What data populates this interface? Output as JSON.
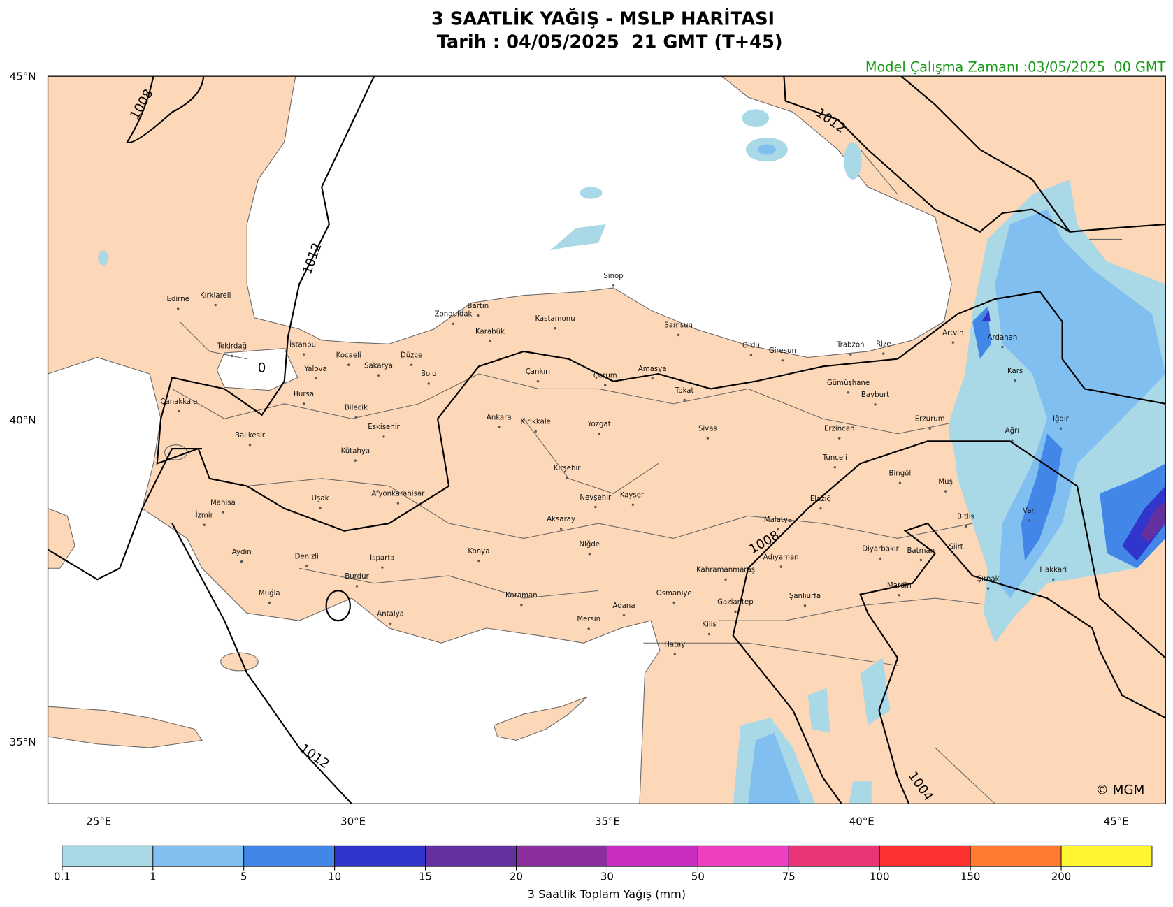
{
  "header": {
    "title": "3 SAATLİK YAĞIŞ - MSLP HARİTASI",
    "subtitle": "Tarih : 04/05/2025  21 GMT (T+45)",
    "model_run": "Model Çalışma Zamanı :03/05/2025  00 GMT"
  },
  "map": {
    "lat_labels": [
      "45°N",
      "40°N",
      "35°N"
    ],
    "lon_labels": [
      "25°E",
      "30°E",
      "35°E",
      "40°E",
      "45°E"
    ],
    "cities": [
      "Edirne",
      "Kırklareli",
      "Tekirdağ",
      "İstanbul",
      "Yalova",
      "Kocaeli",
      "Sakarya",
      "Düzce",
      "Bolu",
      "Bursa",
      "Bilecik",
      "Çanakkale",
      "Balıkesir",
      "Eskişehir",
      "Kütahya",
      "Zonguldak",
      "Bartın",
      "Karabük",
      "Kastamonu",
      "Sinop",
      "Samsun",
      "Çankırı",
      "Çorum",
      "Amasya",
      "Tokat",
      "Ordu",
      "Giresun",
      "Trabzon",
      "Rize",
      "Artvin",
      "Ardahan",
      "Kars",
      "Gümüşhane",
      "Bayburt",
      "Erzurum",
      "Erzincan",
      "Iğdır",
      "Ağrı",
      "Ankara",
      "Kırıkkale",
      "Yozgat",
      "Sivas",
      "Kırşehir",
      "Tunceli",
      "Bingöl",
      "Muş",
      "Afyonkarahisar",
      "Uşak",
      "Manisa",
      "İzmir",
      "Nevşehir",
      "Kayseri",
      "Elazığ",
      "Aksaray",
      "Malatya",
      "Bitlis",
      "Van",
      "Niğde",
      "Aydın",
      "Denizli",
      "Isparta",
      "Konya",
      "Adıyaman",
      "Diyarbakır",
      "Batman",
      "Siirt",
      "Hakkari",
      "Kahramanmaraş",
      "Burdur",
      "Muğla",
      "Karaman",
      "Osmaniye",
      "Şanlıurfa",
      "Mardin",
      "Şırnak",
      "Gaziantep",
      "Adana",
      "Antalya",
      "Mersin",
      "Kilis",
      "Hatay"
    ],
    "isobar_labels": [
      "1008",
      "1012",
      "1012",
      "1012",
      "1008",
      "1004",
      "0"
    ],
    "credit": "© MGM"
  },
  "colorbar": {
    "label": "3 Saatlik Toplam Yağış (mm)",
    "ticks": [
      0.1,
      1,
      5,
      10,
      15,
      20,
      30,
      50,
      75,
      100,
      150,
      200
    ],
    "colors": [
      "#a9d8e6",
      "#80bff0",
      "#4287e8",
      "#3035cc",
      "#6430a0",
      "#8c2e9e",
      "#c82fc0",
      "#ec40c0",
      "#ea3478",
      "#ff3030",
      "#ff7a30",
      "#fff530"
    ]
  }
}
